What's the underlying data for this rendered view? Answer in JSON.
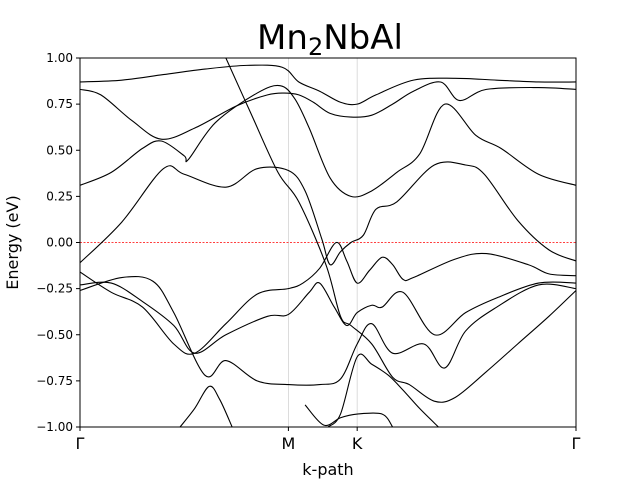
{
  "chart_data": {
    "type": "line",
    "title": "Mn",
    "title_subscript": "2",
    "title_suffix": "NbAl",
    "xlabel": "k-path",
    "ylabel": "Energy (eV)",
    "ylim": [
      -1.0,
      1.0
    ],
    "yticks": [
      1.0,
      0.75,
      0.5,
      0.25,
      0.0,
      -0.25,
      -0.5,
      -0.75,
      -1.0
    ],
    "ytick_labels": [
      "1.00",
      "0.75",
      "0.50",
      "0.25",
      "0.00",
      "−0.25",
      "−0.50",
      "−0.75",
      "−1.00"
    ],
    "xlim": [
      0.0,
      2.38
    ],
    "high_symmetry_points": [
      {
        "label": "Γ",
        "x": 0.0
      },
      {
        "label": "M",
        "x": 1.0
      },
      {
        "label": "K",
        "x": 1.33
      },
      {
        "label": "Γ",
        "x": 2.38
      }
    ],
    "fermi_level": {
      "energy": 0.0,
      "color": "#ff0000",
      "style": "dashed"
    },
    "band_color": "#000000",
    "vline_color": "#d3d3d3",
    "grid": false,
    "series": [
      {
        "values": [
          [
            0.0,
            0.87
          ],
          [
            0.2,
            0.88
          ],
          [
            0.4,
            0.91
          ],
          [
            0.6,
            0.94
          ],
          [
            0.8,
            0.96
          ],
          [
            0.97,
            0.95
          ],
          [
            1.05,
            0.87
          ],
          [
            1.15,
            0.82
          ],
          [
            1.25,
            0.76
          ],
          [
            1.33,
            0.75
          ],
          [
            1.42,
            0.8
          ],
          [
            1.6,
            0.88
          ],
          [
            1.8,
            0.89
          ],
          [
            2.0,
            0.88
          ],
          [
            2.2,
            0.87
          ],
          [
            2.38,
            0.87
          ]
        ]
      },
      {
        "values": [
          [
            0.0,
            0.83
          ],
          [
            0.1,
            0.8
          ],
          [
            0.25,
            0.66
          ],
          [
            0.39,
            0.56
          ],
          [
            0.55,
            0.62
          ],
          [
            0.75,
            0.74
          ],
          [
            0.9,
            0.8
          ],
          [
            0.98,
            0.81
          ],
          [
            1.05,
            0.8
          ],
          [
            1.12,
            0.76
          ],
          [
            1.2,
            0.7
          ],
          [
            1.3,
            0.68
          ],
          [
            1.4,
            0.69
          ],
          [
            1.5,
            0.75
          ],
          [
            1.6,
            0.82
          ],
          [
            1.73,
            0.87
          ],
          [
            1.82,
            0.77
          ],
          [
            1.95,
            0.83
          ],
          [
            2.2,
            0.84
          ],
          [
            2.38,
            0.83
          ]
        ]
      },
      {
        "values": [
          [
            0.0,
            0.31
          ],
          [
            0.15,
            0.38
          ],
          [
            0.3,
            0.51
          ],
          [
            0.39,
            0.55
          ],
          [
            0.5,
            0.47
          ],
          [
            0.52,
            0.45
          ],
          [
            0.65,
            0.65
          ],
          [
            0.85,
            0.81
          ],
          [
            0.96,
            0.85
          ],
          [
            1.03,
            0.78
          ],
          [
            1.1,
            0.62
          ],
          [
            1.2,
            0.35
          ],
          [
            1.3,
            0.25
          ],
          [
            1.4,
            0.28
          ],
          [
            1.52,
            0.38
          ],
          [
            1.63,
            0.48
          ],
          [
            1.75,
            0.75
          ],
          [
            1.9,
            0.58
          ],
          [
            2.02,
            0.51
          ],
          [
            2.2,
            0.37
          ],
          [
            2.38,
            0.31
          ]
        ]
      },
      {
        "values": [
          [
            0.0,
            -0.11
          ],
          [
            0.2,
            0.11
          ],
          [
            0.4,
            0.4
          ],
          [
            0.5,
            0.37
          ],
          [
            0.7,
            0.3
          ],
          [
            0.85,
            0.4
          ],
          [
            1.0,
            0.39
          ],
          [
            1.08,
            0.28
          ],
          [
            1.16,
            0.02
          ],
          [
            1.2,
            -0.12
          ],
          [
            1.25,
            -0.05
          ],
          [
            1.3,
            0.0
          ],
          [
            1.36,
            0.04
          ],
          [
            1.42,
            0.18
          ],
          [
            1.52,
            0.22
          ],
          [
            1.7,
            0.42
          ],
          [
            1.85,
            0.42
          ],
          [
            1.94,
            0.37
          ],
          [
            2.1,
            0.12
          ],
          [
            2.25,
            -0.04
          ],
          [
            2.38,
            -0.1
          ]
        ]
      },
      {
        "values": [
          [
            0.0,
            -0.16
          ],
          [
            0.15,
            -0.27
          ],
          [
            0.3,
            -0.35
          ],
          [
            0.45,
            -0.55
          ],
          [
            0.55,
            -0.6
          ],
          [
            0.7,
            -0.44
          ],
          [
            0.85,
            -0.28
          ],
          [
            1.0,
            -0.25
          ],
          [
            1.07,
            -0.22
          ],
          [
            1.15,
            -0.14
          ],
          [
            1.23,
            0.0
          ],
          [
            1.28,
            -0.1
          ],
          [
            1.33,
            -0.22
          ],
          [
            1.39,
            -0.15
          ],
          [
            1.45,
            -0.08
          ],
          [
            1.5,
            -0.12
          ],
          [
            1.55,
            -0.2
          ],
          [
            1.6,
            -0.19
          ],
          [
            1.8,
            -0.09
          ],
          [
            1.95,
            -0.06
          ],
          [
            2.15,
            -0.12
          ],
          [
            2.25,
            -0.17
          ],
          [
            2.38,
            -0.18
          ]
        ]
      },
      {
        "values": [
          [
            0.0,
            -0.26
          ],
          [
            0.2,
            -0.19
          ],
          [
            0.35,
            -0.21
          ],
          [
            0.45,
            -0.38
          ],
          [
            0.6,
            -0.72
          ],
          [
            0.7,
            -0.64
          ],
          [
            0.85,
            -0.75
          ],
          [
            1.0,
            -0.77
          ],
          [
            1.15,
            -0.77
          ],
          [
            1.25,
            -0.74
          ],
          [
            1.33,
            -0.55
          ],
          [
            1.4,
            -0.44
          ],
          [
            1.5,
            -0.6
          ],
          [
            1.65,
            -0.55
          ],
          [
            1.75,
            -0.68
          ],
          [
            1.85,
            -0.48
          ],
          [
            2.0,
            -0.35
          ],
          [
            2.2,
            -0.23
          ],
          [
            2.38,
            -0.25
          ]
        ]
      },
      {
        "values": [
          [
            0.0,
            -0.23
          ],
          [
            0.15,
            -0.22
          ],
          [
            0.3,
            -0.32
          ],
          [
            0.45,
            -0.45
          ],
          [
            0.55,
            -0.6
          ],
          [
            0.7,
            -0.5
          ],
          [
            0.9,
            -0.4
          ],
          [
            1.0,
            -0.39
          ],
          [
            1.1,
            -0.27
          ],
          [
            1.15,
            -0.22
          ],
          [
            1.22,
            -0.35
          ],
          [
            1.28,
            -0.45
          ],
          [
            1.33,
            -0.38
          ],
          [
            1.4,
            -0.34
          ],
          [
            1.45,
            -0.35
          ],
          [
            1.55,
            -0.27
          ],
          [
            1.7,
            -0.5
          ],
          [
            1.85,
            -0.38
          ],
          [
            2.0,
            -0.3
          ],
          [
            2.2,
            -0.22
          ],
          [
            2.38,
            -0.22
          ]
        ]
      },
      {
        "values": [
          [
            0.7,
            1.0
          ],
          [
            0.82,
            0.7
          ],
          [
            0.95,
            0.38
          ],
          [
            1.05,
            0.22
          ],
          [
            1.18,
            -0.12
          ],
          [
            1.25,
            -0.4
          ],
          [
            1.3,
            -0.45
          ],
          [
            1.4,
            -0.55
          ],
          [
            1.5,
            -0.73
          ],
          [
            1.58,
            -0.77
          ],
          [
            1.7,
            -0.86
          ],
          [
            1.8,
            -0.84
          ],
          [
            1.95,
            -0.7
          ],
          [
            2.1,
            -0.55
          ],
          [
            2.25,
            -0.4
          ],
          [
            2.38,
            -0.26
          ]
        ]
      },
      {
        "values": [
          [
            0.48,
            -1.0
          ],
          [
            0.55,
            -0.9
          ],
          [
            0.62,
            -0.78
          ],
          [
            0.67,
            -0.85
          ],
          [
            0.73,
            -1.0
          ]
        ]
      },
      {
        "values": [
          [
            1.19,
            -1.0
          ],
          [
            1.25,
            -0.93
          ],
          [
            1.33,
            -0.62
          ],
          [
            1.4,
            -0.66
          ],
          [
            1.48,
            -0.72
          ],
          [
            1.55,
            -0.8
          ],
          [
            1.63,
            -0.9
          ],
          [
            1.72,
            -1.0
          ]
        ]
      },
      {
        "values": [
          [
            1.08,
            -0.88
          ],
          [
            1.17,
            -0.99
          ],
          [
            1.25,
            -0.95
          ],
          [
            1.33,
            -0.93
          ],
          [
            1.45,
            -0.93
          ],
          [
            1.5,
            -1.0
          ]
        ]
      }
    ]
  }
}
